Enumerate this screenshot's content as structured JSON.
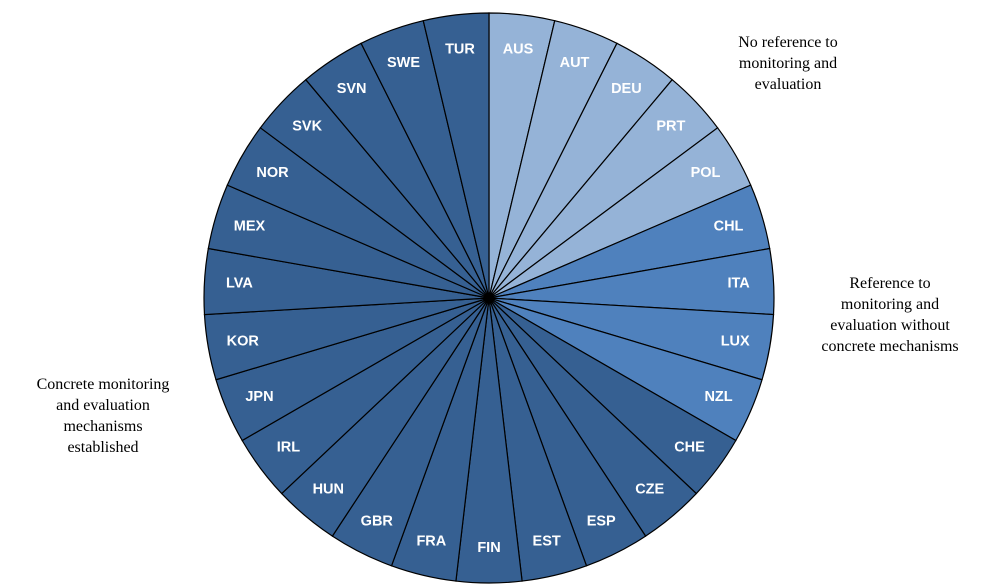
{
  "chart_data": {
    "type": "pie",
    "categories": [
      {
        "name": "No reference to monitoring and evaluation",
        "color": "#95b3d7"
      },
      {
        "name": "Reference to monitoring and evaluation without concrete mechanisms",
        "color": "#4f81bd"
      },
      {
        "name": "Concrete monitoring and evaluation mechanisms established",
        "color": "#366092"
      }
    ],
    "slices": [
      {
        "label": "AUS",
        "value": 1,
        "category": 0
      },
      {
        "label": "AUT",
        "value": 1,
        "category": 0
      },
      {
        "label": "DEU",
        "value": 1,
        "category": 0
      },
      {
        "label": "PRT",
        "value": 1,
        "category": 0
      },
      {
        "label": "POL",
        "value": 1,
        "category": 0
      },
      {
        "label": "CHL",
        "value": 1,
        "category": 1
      },
      {
        "label": "ITA",
        "value": 1,
        "category": 1
      },
      {
        "label": "LUX",
        "value": 1,
        "category": 1
      },
      {
        "label": "NZL",
        "value": 1,
        "category": 1
      },
      {
        "label": "CHE",
        "value": 1,
        "category": 2
      },
      {
        "label": "CZE",
        "value": 1,
        "category": 2
      },
      {
        "label": "ESP",
        "value": 1,
        "category": 2
      },
      {
        "label": "EST",
        "value": 1,
        "category": 2
      },
      {
        "label": "FIN",
        "value": 1,
        "category": 2
      },
      {
        "label": "FRA",
        "value": 1,
        "category": 2
      },
      {
        "label": "GBR",
        "value": 1,
        "category": 2
      },
      {
        "label": "HUN",
        "value": 1,
        "category": 2
      },
      {
        "label": "IRL",
        "value": 1,
        "category": 2
      },
      {
        "label": "JPN",
        "value": 1,
        "category": 2
      },
      {
        "label": "KOR",
        "value": 1,
        "category": 2
      },
      {
        "label": "LVA",
        "value": 1,
        "category": 2
      },
      {
        "label": "MEX",
        "value": 1,
        "category": 2
      },
      {
        "label": "NOR",
        "value": 1,
        "category": 2
      },
      {
        "label": "SVK",
        "value": 1,
        "category": 2
      },
      {
        "label": "SVN",
        "value": 1,
        "category": 2
      },
      {
        "label": "SWE",
        "value": 1,
        "category": 2
      },
      {
        "label": "TUR",
        "value": 1,
        "category": 2
      }
    ],
    "annotations": {
      "none": "No reference to\nmonitoring and\nevaluation",
      "ref": "Reference to\nmonitoring and\nevaluation without\nconcrete mechanisms",
      "concrete": "Concrete monitoring\nand evaluation\nmechanisms\nestablished"
    },
    "legend": false
  }
}
